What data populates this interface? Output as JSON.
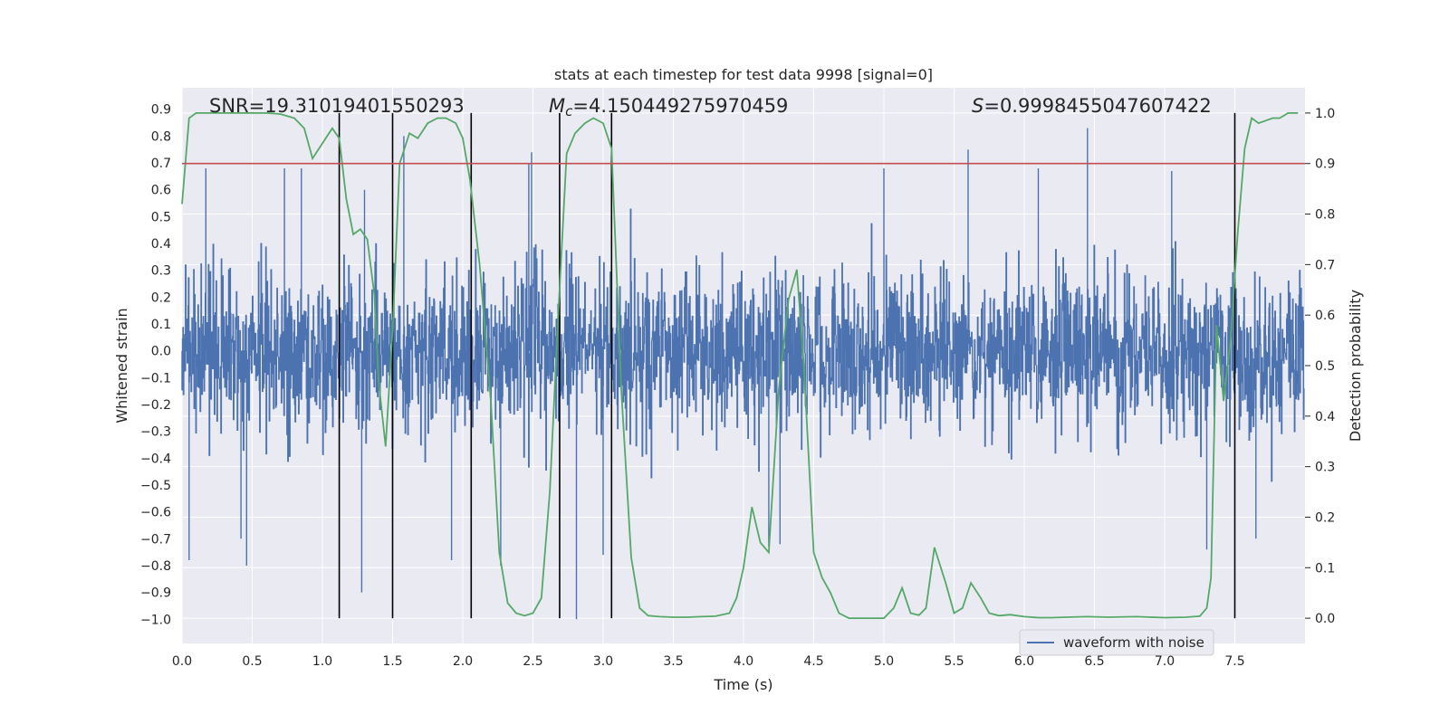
{
  "chart_data": {
    "type": "line",
    "title": "stats at each timestep for test data 9998 [signal=0]",
    "xlabel": "Time (s)",
    "ylabel": "Whitened strain",
    "y2label": "Detection probability",
    "xlim": [
      0.0,
      8.0
    ],
    "ylim": [
      -1.09,
      0.98
    ],
    "y2lim": [
      -0.05,
      1.05
    ],
    "x_ticks": [
      0.0,
      0.5,
      1.0,
      1.5,
      2.0,
      2.5,
      3.0,
      3.5,
      4.0,
      4.5,
      5.0,
      5.5,
      6.0,
      6.5,
      7.0,
      7.5
    ],
    "y_ticks": [
      -1.0,
      -0.9,
      -0.8,
      -0.7,
      -0.6,
      -0.5,
      -0.4,
      -0.3,
      -0.2,
      -0.1,
      0.0,
      0.1,
      0.2,
      0.3,
      0.4,
      0.5,
      0.6,
      0.7,
      0.8,
      0.9
    ],
    "y2_ticks": [
      0.0,
      0.1,
      0.2,
      0.3,
      0.4,
      0.5,
      0.6,
      0.7,
      0.8,
      0.9,
      1.0
    ],
    "grid": true,
    "legend": {
      "position": "lower-right",
      "entries": [
        "waveform with noise"
      ]
    },
    "annotations": {
      "snr": "SNR=19.31019401550293",
      "mc_symbol": "M",
      "mc_sub": "c",
      "mc_value": "=4.150449275970459",
      "s_symbol": "S",
      "s_value": "=0.9998455047607422"
    },
    "threshold": {
      "axis": "y2",
      "value": 0.9,
      "color": "#c44e52"
    },
    "vertical_lines": [
      1.12,
      1.5,
      2.06,
      2.69,
      3.06,
      7.5
    ],
    "series": [
      {
        "name": "waveform with noise",
        "color": "#4c72b0",
        "axis": "y",
        "band_sigma": 0.15,
        "peaks": [
          {
            "t": 0.05,
            "v": -0.78
          },
          {
            "t": 0.17,
            "v": 0.68
          },
          {
            "t": 0.42,
            "v": -0.7
          },
          {
            "t": 0.46,
            "v": -0.8
          },
          {
            "t": 0.73,
            "v": 0.68
          },
          {
            "t": 0.85,
            "v": 0.68
          },
          {
            "t": 1.28,
            "v": -0.9
          },
          {
            "t": 1.3,
            "v": 0.6
          },
          {
            "t": 1.58,
            "v": 0.8
          },
          {
            "t": 1.92,
            "v": -0.78
          },
          {
            "t": 2.27,
            "v": -0.8
          },
          {
            "t": 2.47,
            "v": 0.7
          },
          {
            "t": 2.49,
            "v": 0.74
          },
          {
            "t": 2.81,
            "v": -1.0
          },
          {
            "t": 3.0,
            "v": -0.76
          },
          {
            "t": 4.18,
            "v": -0.73
          },
          {
            "t": 4.26,
            "v": -0.72
          },
          {
            "t": 5.0,
            "v": 0.68
          },
          {
            "t": 5.6,
            "v": 0.75
          },
          {
            "t": 6.45,
            "v": 0.83
          },
          {
            "t": 7.05,
            "v": 0.67
          },
          {
            "t": 7.3,
            "v": -0.74
          },
          {
            "t": 7.65,
            "v": -0.7
          },
          {
            "t": 6.1,
            "v": 0.68
          }
        ]
      },
      {
        "name": "",
        "color": "#55a868",
        "axis": "y2",
        "x": [
          0.0,
          0.05,
          0.1,
          0.2,
          0.3,
          0.4,
          0.5,
          0.6,
          0.7,
          0.8,
          0.87,
          0.93,
          1.0,
          1.07,
          1.12,
          1.17,
          1.22,
          1.27,
          1.32,
          1.37,
          1.4,
          1.45,
          1.5,
          1.55,
          1.62,
          1.68,
          1.75,
          1.82,
          1.88,
          1.95,
          2.0,
          2.05,
          2.12,
          2.2,
          2.26,
          2.32,
          2.38,
          2.44,
          2.5,
          2.56,
          2.62,
          2.68,
          2.74,
          2.8,
          2.87,
          2.93,
          3.0,
          3.06,
          3.13,
          3.2,
          3.26,
          3.32,
          3.4,
          3.5,
          3.6,
          3.7,
          3.8,
          3.9,
          3.95,
          4.0,
          4.06,
          4.12,
          4.18,
          4.25,
          4.32,
          4.38,
          4.43,
          4.5,
          4.56,
          4.62,
          4.68,
          4.75,
          4.8,
          4.9,
          5.0,
          5.07,
          5.13,
          5.19,
          5.25,
          5.3,
          5.36,
          5.44,
          5.5,
          5.56,
          5.62,
          5.69,
          5.75,
          5.82,
          5.9,
          6.0,
          6.1,
          6.2,
          6.3,
          6.45,
          6.6,
          6.8,
          7.0,
          7.15,
          7.25,
          7.3,
          7.33,
          7.37,
          7.42,
          7.47,
          7.52,
          7.57,
          7.62,
          7.67,
          7.72,
          7.77,
          7.82,
          7.88,
          7.95
        ],
        "values": [
          0.82,
          0.99,
          1.0,
          1.0,
          1.0,
          1.0,
          1.0,
          1.0,
          0.998,
          0.99,
          0.97,
          0.91,
          0.94,
          0.97,
          0.95,
          0.83,
          0.76,
          0.77,
          0.75,
          0.64,
          0.47,
          0.34,
          0.57,
          0.9,
          0.96,
          0.95,
          0.98,
          0.99,
          0.99,
          0.98,
          0.95,
          0.87,
          0.7,
          0.43,
          0.13,
          0.03,
          0.01,
          0.005,
          0.01,
          0.04,
          0.25,
          0.6,
          0.92,
          0.96,
          0.98,
          0.99,
          0.98,
          0.93,
          0.45,
          0.12,
          0.02,
          0.005,
          0.003,
          0.002,
          0.002,
          0.003,
          0.004,
          0.01,
          0.04,
          0.1,
          0.22,
          0.15,
          0.13,
          0.45,
          0.63,
          0.69,
          0.5,
          0.13,
          0.08,
          0.05,
          0.01,
          0.0,
          0.0,
          0.0,
          0.0,
          0.02,
          0.06,
          0.01,
          0.006,
          0.02,
          0.14,
          0.07,
          0.01,
          0.02,
          0.07,
          0.04,
          0.01,
          0.005,
          0.007,
          0.003,
          0.001,
          0.001,
          0.002,
          0.003,
          0.002,
          0.003,
          0.001,
          0.002,
          0.004,
          0.02,
          0.08,
          0.58,
          0.43,
          0.55,
          0.76,
          0.93,
          0.99,
          0.98,
          0.985,
          0.99,
          0.99,
          1.0,
          1.0
        ]
      }
    ]
  }
}
